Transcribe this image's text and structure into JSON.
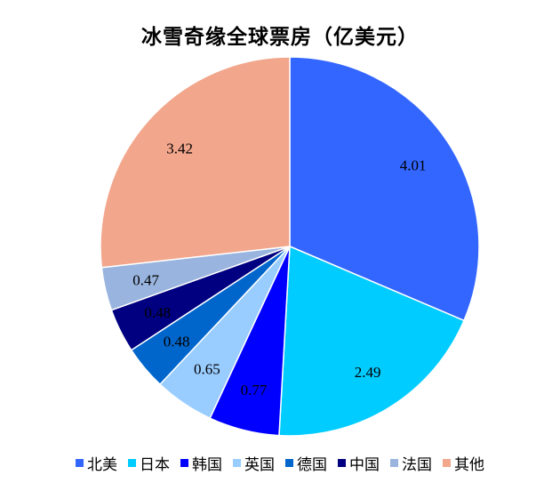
{
  "chart_data": {
    "type": "pie",
    "title": "冰雪奇缘全球票房（亿美元）",
    "categories": [
      "北美",
      "日本",
      "韩国",
      "英国",
      "德国",
      "中国",
      "法国",
      "其他"
    ],
    "values": [
      4.01,
      2.49,
      0.77,
      0.65,
      0.48,
      0.48,
      0.47,
      3.42
    ],
    "labels": [
      "4.01",
      "2.49",
      "0.77",
      "0.65",
      "0.48",
      "0.48",
      "0.47",
      "3.42"
    ],
    "colors": [
      "#3366FF",
      "#00CCFF",
      "#0000FF",
      "#99CCFF",
      "#0066CC",
      "#000080",
      "#99B4DE",
      "#F2A68C"
    ],
    "legend_position": "bottom",
    "start_angle": "12 o'clock",
    "direction": "clockwise"
  }
}
